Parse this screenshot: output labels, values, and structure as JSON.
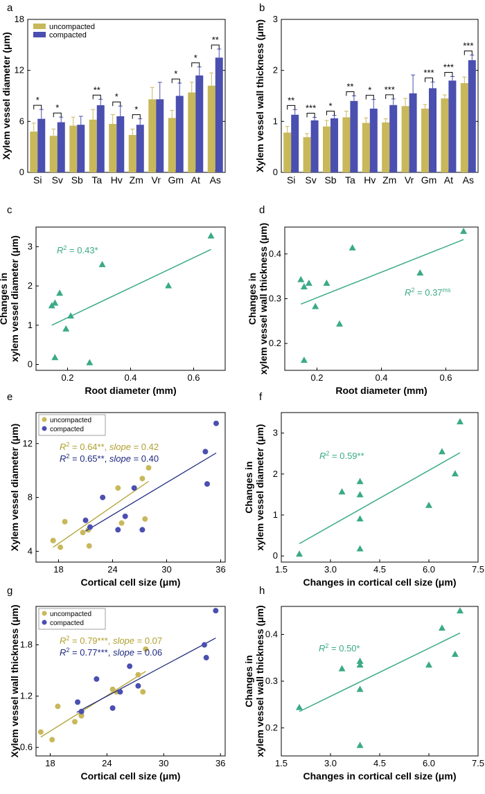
{
  "colors": {
    "uncompacted": "#c8b85a",
    "compacted": "#4a4fb0",
    "teal": "#3aaa88",
    "uncompacted_line": "#b0a030",
    "compacted_line": "#1f2a80"
  },
  "legend": {
    "uncompacted": "uncompacted",
    "compacted": "compacted"
  },
  "chart_data": [
    {
      "panel": "a",
      "type": "bar",
      "ylabel": "Xylem vessel diameter (μm)",
      "ylim": [
        0,
        18
      ],
      "yticks": [
        0,
        6,
        12,
        18
      ],
      "categories": [
        "Si",
        "Sv",
        "Sb",
        "Ta",
        "Hv",
        "Zm",
        "Vr",
        "Gm",
        "At",
        "As"
      ],
      "series": [
        {
          "name": "uncompacted",
          "values": [
            4.8,
            4.3,
            5.5,
            6.2,
            5.7,
            4.4,
            8.6,
            6.4,
            9.4,
            10.2
          ],
          "errors": [
            1.0,
            0.8,
            1.0,
            1.2,
            1.1,
            0.7,
            1.4,
            0.9,
            1.2,
            1.5
          ]
        },
        {
          "name": "compacted",
          "values": [
            6.3,
            5.9,
            5.6,
            7.9,
            6.6,
            5.6,
            8.6,
            9.0,
            11.4,
            13.5
          ],
          "errors": [
            1.1,
            0.6,
            1.0,
            0.7,
            1.2,
            0.7,
            2.0,
            1.5,
            1.0,
            1.0
          ]
        }
      ],
      "significance": [
        "*",
        "*",
        "",
        "**",
        "*",
        "*",
        "",
        "*",
        "*",
        "**"
      ]
    },
    {
      "panel": "b",
      "type": "bar",
      "ylabel": "Xylem vessel wall thickness (μm)",
      "ylim": [
        0,
        3
      ],
      "yticks": [
        0,
        1,
        2,
        3
      ],
      "categories": [
        "Si",
        "Sv",
        "Sb",
        "Ta",
        "Hv",
        "Zm",
        "Vr",
        "Gm",
        "At",
        "As"
      ],
      "series": [
        {
          "name": "uncompacted",
          "values": [
            0.78,
            0.69,
            0.9,
            1.08,
            0.97,
            0.98,
            1.3,
            1.25,
            1.45,
            1.75
          ],
          "errors": [
            0.12,
            0.07,
            0.12,
            0.12,
            0.1,
            0.07,
            0.15,
            0.08,
            0.07,
            0.12
          ]
        },
        {
          "name": "compacted",
          "values": [
            1.13,
            1.02,
            1.06,
            1.4,
            1.25,
            1.32,
            1.55,
            1.65,
            1.8,
            2.2
          ],
          "errors": [
            0.1,
            0.06,
            0.06,
            0.1,
            0.18,
            0.12,
            0.36,
            0.12,
            0.08,
            0.1
          ]
        }
      ],
      "significance": [
        "**",
        "***",
        "*",
        "**",
        "*",
        "***",
        "",
        "***",
        "***",
        "***"
      ]
    },
    {
      "panel": "c",
      "type": "scatter",
      "ylabel": [
        "Changes in",
        "xylem vessel diameter (μm)"
      ],
      "xlabel": "Root diameter (mm)",
      "xlim": [
        0.1,
        0.7
      ],
      "ylim": [
        -0.15,
        3.5
      ],
      "xticks": [
        "0.2",
        "0.4",
        "0.6"
      ],
      "yticks": [
        "0",
        "1",
        "2",
        "3"
      ],
      "points": [
        [
          0.15,
          1.5
        ],
        [
          0.16,
          1.57
        ],
        [
          0.175,
          1.82
        ],
        [
          0.16,
          0.18
        ],
        [
          0.195,
          0.91
        ],
        [
          0.21,
          1.24
        ],
        [
          0.27,
          0.05
        ],
        [
          0.31,
          2.55
        ],
        [
          0.52,
          2.01
        ],
        [
          0.655,
          3.28
        ]
      ],
      "fit": [
        [
          0.15,
          1.0
        ],
        [
          0.655,
          2.93
        ]
      ],
      "r2": {
        "label": "R",
        "value": " = 0.43*"
      }
    },
    {
      "panel": "d",
      "type": "scatter",
      "ylabel": [
        "Changes in",
        "xylem vessel wall thickness (μm)"
      ],
      "xlabel": "Root diameter (mm)",
      "xlim": [
        0.1,
        0.7
      ],
      "ylim": [
        0.14,
        0.46
      ],
      "xticks": [
        "0.2",
        "0.4",
        "0.6"
      ],
      "yticks": [
        "0.2",
        "0.3",
        "0.4"
      ],
      "points": [
        [
          0.15,
          0.343
        ],
        [
          0.16,
          0.327
        ],
        [
          0.175,
          0.335
        ],
        [
          0.16,
          0.163
        ],
        [
          0.195,
          0.283
        ],
        [
          0.23,
          0.335
        ],
        [
          0.27,
          0.244
        ],
        [
          0.31,
          0.414
        ],
        [
          0.52,
          0.358
        ],
        [
          0.655,
          0.451
        ]
      ],
      "fit": [
        [
          0.15,
          0.288
        ],
        [
          0.655,
          0.432
        ]
      ],
      "r2": {
        "label": "R",
        "value": " = 0.37",
        "sup": "ms"
      }
    },
    {
      "panel": "e",
      "type": "scatter",
      "ylabel": "Xylem vessel diameter (μm)",
      "xlabel": "Cortical cell size (μm)",
      "xlim": [
        15.5,
        36.5
      ],
      "ylim": [
        3.2,
        14.3
      ],
      "xticks": [
        "18",
        "24",
        "30",
        "36"
      ],
      "yticks": [
        "4",
        "8",
        "12"
      ],
      "groups": [
        {
          "name": "uncompacted",
          "points": [
            [
              17.4,
              4.8
            ],
            [
              18.2,
              4.3
            ],
            [
              18.7,
              6.2
            ],
            [
              20.7,
              5.4
            ],
            [
              21.4,
              4.4
            ],
            [
              21.3,
              5.6
            ],
            [
              24.6,
              8.7
            ],
            [
              25.0,
              6.1
            ],
            [
              27.3,
              9.4
            ],
            [
              27.6,
              6.4
            ],
            [
              28.0,
              10.2
            ]
          ],
          "fit": [
            [
              17.4,
              4.3
            ],
            [
              28.0,
              9.2
            ]
          ]
        },
        {
          "name": "compacted",
          "points": [
            [
              21.0,
              6.3
            ],
            [
              21.5,
              5.8
            ],
            [
              22.9,
              8.0
            ],
            [
              24.6,
              5.6
            ],
            [
              25.4,
              6.6
            ],
            [
              26.4,
              8.7
            ],
            [
              27.3,
              5.6
            ],
            [
              34.3,
              11.4
            ],
            [
              34.5,
              9.0
            ],
            [
              35.5,
              13.5
            ]
          ],
          "fit": [
            [
              21.0,
              5.5
            ],
            [
              35.5,
              11.3
            ]
          ]
        }
      ],
      "stats": [
        {
          "group": "uncompacted",
          "label": "R",
          "value": " = 0.64**, ",
          "slope_label": "slope",
          "slope_value": " = 0.42"
        },
        {
          "group": "compacted",
          "label": "R",
          "value": " = 0.65**, ",
          "slope_label": "slope",
          "slope_value": " = 0.40"
        }
      ]
    },
    {
      "panel": "f",
      "type": "scatter",
      "ylabel": [
        "Changes in",
        "xylem vessel diameter (μm)"
      ],
      "xlabel": "Changes in cortical cell size (μm)",
      "xlim": [
        1.5,
        7.5
      ],
      "ylim": [
        -0.15,
        3.5
      ],
      "xticks": [
        "1.5",
        "3.0",
        "4.5",
        "6.0",
        "7.5"
      ],
      "yticks": [
        "0",
        "1",
        "2",
        "3"
      ],
      "points": [
        [
          2.05,
          0.05
        ],
        [
          3.35,
          1.57
        ],
        [
          3.9,
          1.5
        ],
        [
          3.9,
          1.82
        ],
        [
          3.9,
          0.91
        ],
        [
          3.9,
          0.18
        ],
        [
          6.0,
          1.24
        ],
        [
          6.4,
          2.55
        ],
        [
          6.8,
          2.01
        ],
        [
          6.95,
          3.28
        ]
      ],
      "fit": [
        [
          2.05,
          0.3
        ],
        [
          6.95,
          2.52
        ]
      ],
      "r2": {
        "label": "R",
        "value": " = 0.59**"
      }
    },
    {
      "panel": "g",
      "type": "scatter",
      "ylabel": "Xylem vessel wall thickness (μm)",
      "xlabel": "Cortical cell size (μm)",
      "xlim": [
        16.5,
        36.5
      ],
      "ylim": [
        0.5,
        2.25
      ],
      "xticks": [
        "18",
        "24",
        "30",
        "36"
      ],
      "yticks": [
        "0.6",
        "1.2",
        "1.8"
      ],
      "groups": [
        {
          "name": "uncompacted",
          "points": [
            [
              17.0,
              0.78
            ],
            [
              18.2,
              0.69
            ],
            [
              18.8,
              1.08
            ],
            [
              20.6,
              0.9
            ],
            [
              21.3,
              0.98
            ],
            [
              21.3,
              0.97
            ],
            [
              24.6,
              1.28
            ],
            [
              25.0,
              1.25
            ],
            [
              27.3,
              1.45
            ],
            [
              27.8,
              1.25
            ],
            [
              28.1,
              1.75
            ]
          ],
          "fit": [
            [
              17.0,
              0.72
            ],
            [
              28.1,
              1.49
            ]
          ]
        },
        {
          "name": "compacted",
          "points": [
            [
              20.9,
              1.13
            ],
            [
              21.3,
              1.02
            ],
            [
              22.9,
              1.4
            ],
            [
              24.6,
              1.06
            ],
            [
              25.4,
              1.25
            ],
            [
              26.4,
              1.55
            ],
            [
              27.3,
              1.32
            ],
            [
              34.3,
              1.8
            ],
            [
              34.5,
              1.65
            ],
            [
              35.5,
              2.2
            ]
          ],
          "fit": [
            [
              20.8,
              1.01
            ],
            [
              35.5,
              1.88
            ]
          ]
        }
      ],
      "stats": [
        {
          "group": "uncompacted",
          "label": "R",
          "value": " = 0.79***, ",
          "slope_label": "slope",
          "slope_value": " = 0.07"
        },
        {
          "group": "compacted",
          "label": "R",
          "value": " = 0.77***, ",
          "slope_label": "slope",
          "slope_value": " = 0.06"
        }
      ]
    },
    {
      "panel": "h",
      "type": "scatter",
      "ylabel": [
        "Changes in",
        "xylem vessel wall thickness (μm)"
      ],
      "xlabel": "Changes in cortical cell size (μm)",
      "xlim": [
        1.5,
        7.5
      ],
      "ylim": [
        0.14,
        0.46
      ],
      "xticks": [
        "1.5",
        "3.0",
        "4.5",
        "6.0",
        "7.5"
      ],
      "yticks": [
        "0.2",
        "0.3",
        "0.4"
      ],
      "points": [
        [
          2.05,
          0.244
        ],
        [
          3.35,
          0.327
        ],
        [
          3.9,
          0.343
        ],
        [
          3.9,
          0.335
        ],
        [
          3.9,
          0.283
        ],
        [
          3.9,
          0.163
        ],
        [
          6.0,
          0.335
        ],
        [
          6.4,
          0.414
        ],
        [
          6.8,
          0.358
        ],
        [
          6.95,
          0.451
        ]
      ],
      "fit": [
        [
          2.05,
          0.235
        ],
        [
          6.95,
          0.403
        ]
      ],
      "r2": {
        "label": "R",
        "value": " = 0.50*"
      }
    }
  ]
}
